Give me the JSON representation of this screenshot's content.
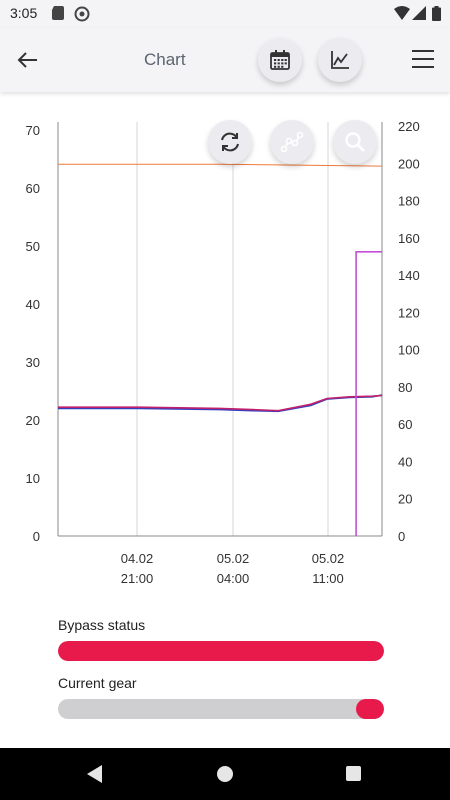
{
  "status_bar": {
    "time": "3:05"
  },
  "app_bar": {
    "title": "Chart"
  },
  "chart_data": {
    "type": "line",
    "x_ticks": [
      {
        "date": "04.02",
        "time": "21:00"
      },
      {
        "date": "05.02",
        "time": "04:00"
      },
      {
        "date": "05.02",
        "time": "11:00"
      }
    ],
    "y_left": {
      "ticks": [
        0,
        10,
        20,
        30,
        40,
        50,
        60,
        70
      ],
      "range": [
        0,
        70
      ]
    },
    "y_right": {
      "ticks": [
        0,
        20,
        40,
        60,
        80,
        100,
        120,
        140,
        160,
        180,
        200,
        220
      ],
      "range": [
        0,
        220
      ]
    },
    "grid": "vertical",
    "series": [
      {
        "axis": "right",
        "color": "#f07a3a",
        "points": [
          [
            0,
            199.5
          ],
          [
            0.5,
            199.5
          ],
          [
            1.0,
            198.5
          ]
        ]
      },
      {
        "axis": "left",
        "color": "#2f3fbf",
        "points": [
          [
            0,
            22.0
          ],
          [
            0.25,
            22.0
          ],
          [
            0.5,
            21.8
          ],
          [
            0.6,
            21.6
          ],
          [
            0.68,
            21.5
          ],
          [
            0.78,
            22.5
          ],
          [
            0.83,
            23.6
          ],
          [
            0.9,
            23.9
          ],
          [
            0.97,
            24.0
          ],
          [
            1.0,
            24.3
          ]
        ]
      },
      {
        "axis": "left",
        "color": "#c0216e",
        "points": [
          [
            0,
            22.2
          ],
          [
            0.25,
            22.2
          ],
          [
            0.5,
            22.0
          ],
          [
            0.6,
            21.8
          ],
          [
            0.68,
            21.6
          ],
          [
            0.78,
            22.7
          ],
          [
            0.83,
            23.7
          ],
          [
            0.9,
            24.0
          ],
          [
            0.97,
            24.1
          ],
          [
            1.0,
            24.2
          ]
        ]
      },
      {
        "axis": "right",
        "color": "#c44fd6",
        "points": [
          [
            0.92,
            0
          ],
          [
            0.92,
            152.5
          ],
          [
            1.0,
            152.5
          ]
        ]
      }
    ]
  },
  "bypass": {
    "label": "Bypass status",
    "value": 1.0,
    "color": "#e8194b"
  },
  "gear": {
    "label": "Current gear",
    "value": 0.086,
    "color": "#e8194b"
  }
}
